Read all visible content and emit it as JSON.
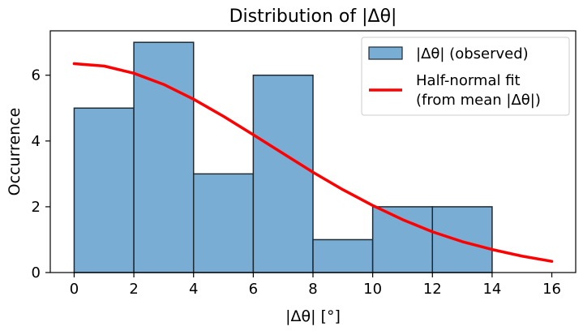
{
  "chart_data": {
    "type": "bar",
    "title": "Distribution of |Δθ|",
    "xlabel": "|Δθ|  [°]",
    "ylabel": "Occurrence",
    "xlim": [
      -0.8,
      16.8
    ],
    "ylim": [
      0,
      7.35
    ],
    "xticks": [
      0,
      2,
      4,
      6,
      8,
      10,
      12,
      14,
      16
    ],
    "yticks": [
      0,
      2,
      4,
      6
    ],
    "grid": false,
    "legend_position": "top-right",
    "series": [
      {
        "name": "|Δθ| (observed)",
        "kind": "histogram",
        "color": "#7AADD3",
        "edge_color": "#1F2A33",
        "bins": [
          {
            "x0": 0,
            "x1": 2,
            "count": 5
          },
          {
            "x0": 2,
            "x1": 4,
            "count": 7
          },
          {
            "x0": 4,
            "x1": 6,
            "count": 3
          },
          {
            "x0": 6,
            "x1": 8,
            "count": 6
          },
          {
            "x0": 8,
            "x1": 10,
            "count": 1
          },
          {
            "x0": 10,
            "x1": 12,
            "count": 2
          },
          {
            "x0": 12,
            "x1": 14,
            "count": 2
          }
        ]
      },
      {
        "name_lines": [
          "Half-normal fit",
          "(from mean |Δθ|)"
        ],
        "kind": "line",
        "color": "#FF0000",
        "x": [
          0,
          1,
          2,
          3,
          4,
          5,
          6,
          7,
          8,
          9,
          10,
          11,
          12,
          13,
          14,
          15,
          16
        ],
        "y": [
          6.35,
          6.28,
          6.06,
          5.72,
          5.27,
          4.75,
          4.19,
          3.62,
          3.05,
          2.52,
          2.04,
          1.61,
          1.24,
          0.94,
          0.7,
          0.5,
          0.34
        ]
      }
    ]
  }
}
